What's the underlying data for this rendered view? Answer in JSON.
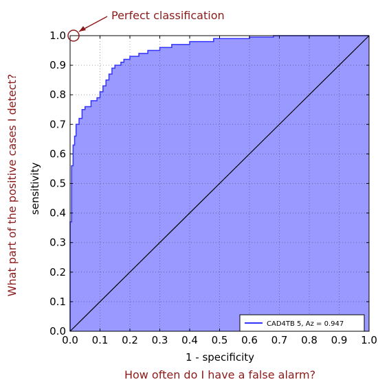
{
  "chart_data": {
    "type": "area",
    "xlabel": "1 - specificity",
    "ylabel": "sensitivity",
    "xlim": [
      0,
      1
    ],
    "ylim": [
      0,
      1
    ],
    "xticks": [
      "0.0",
      "0.1",
      "0.2",
      "0.3",
      "0.4",
      "0.5",
      "0.6",
      "0.7",
      "0.8",
      "0.9",
      "1.0"
    ],
    "yticks": [
      "0.0",
      "0.1",
      "0.2",
      "0.3",
      "0.4",
      "0.5",
      "0.6",
      "0.7",
      "0.8",
      "0.9",
      "1.0"
    ],
    "grid": true,
    "legend_position": "lower-right",
    "series": [
      {
        "name": "CAD4TB 5, Az = 0.947",
        "color": "#3333ff",
        "fill": "#9999ff",
        "x": [
          0,
          0,
          0.005,
          0.005,
          0.01,
          0.01,
          0.015,
          0.015,
          0.02,
          0.02,
          0.03,
          0.03,
          0.04,
          0.04,
          0.05,
          0.05,
          0.07,
          0.07,
          0.09,
          0.09,
          0.1,
          0.1,
          0.11,
          0.11,
          0.12,
          0.12,
          0.13,
          0.13,
          0.14,
          0.14,
          0.15,
          0.15,
          0.17,
          0.17,
          0.18,
          0.18,
          0.2,
          0.2,
          0.23,
          0.23,
          0.26,
          0.26,
          0.3,
          0.3,
          0.34,
          0.34,
          0.4,
          0.4,
          0.48,
          0.48,
          0.6,
          0.6,
          0.68,
          0.68,
          0.8,
          0.8,
          1.0
        ],
        "y": [
          0,
          0.37,
          0.37,
          0.56,
          0.56,
          0.63,
          0.63,
          0.66,
          0.66,
          0.7,
          0.7,
          0.72,
          0.72,
          0.75,
          0.75,
          0.76,
          0.76,
          0.78,
          0.78,
          0.79,
          0.79,
          0.81,
          0.81,
          0.83,
          0.83,
          0.85,
          0.85,
          0.87,
          0.87,
          0.89,
          0.89,
          0.9,
          0.9,
          0.91,
          0.91,
          0.92,
          0.92,
          0.93,
          0.93,
          0.94,
          0.94,
          0.95,
          0.95,
          0.96,
          0.96,
          0.97,
          0.97,
          0.98,
          0.98,
          0.99,
          0.99,
          0.995,
          0.995,
          1.0,
          1.0,
          1.0,
          1.0
        ]
      },
      {
        "name": "",
        "color": "#000000",
        "x": [
          0,
          1
        ],
        "y": [
          0,
          1
        ]
      }
    ],
    "annotations": [
      {
        "text": "Perfect classification",
        "x": 0.0,
        "y": 1.0,
        "color": "#8b1a1a"
      }
    ],
    "outer_labels": {
      "x": "How often do I have a false alarm?",
      "y": "What part of the positive cases I detect?",
      "color": "#8b1a1a"
    }
  }
}
